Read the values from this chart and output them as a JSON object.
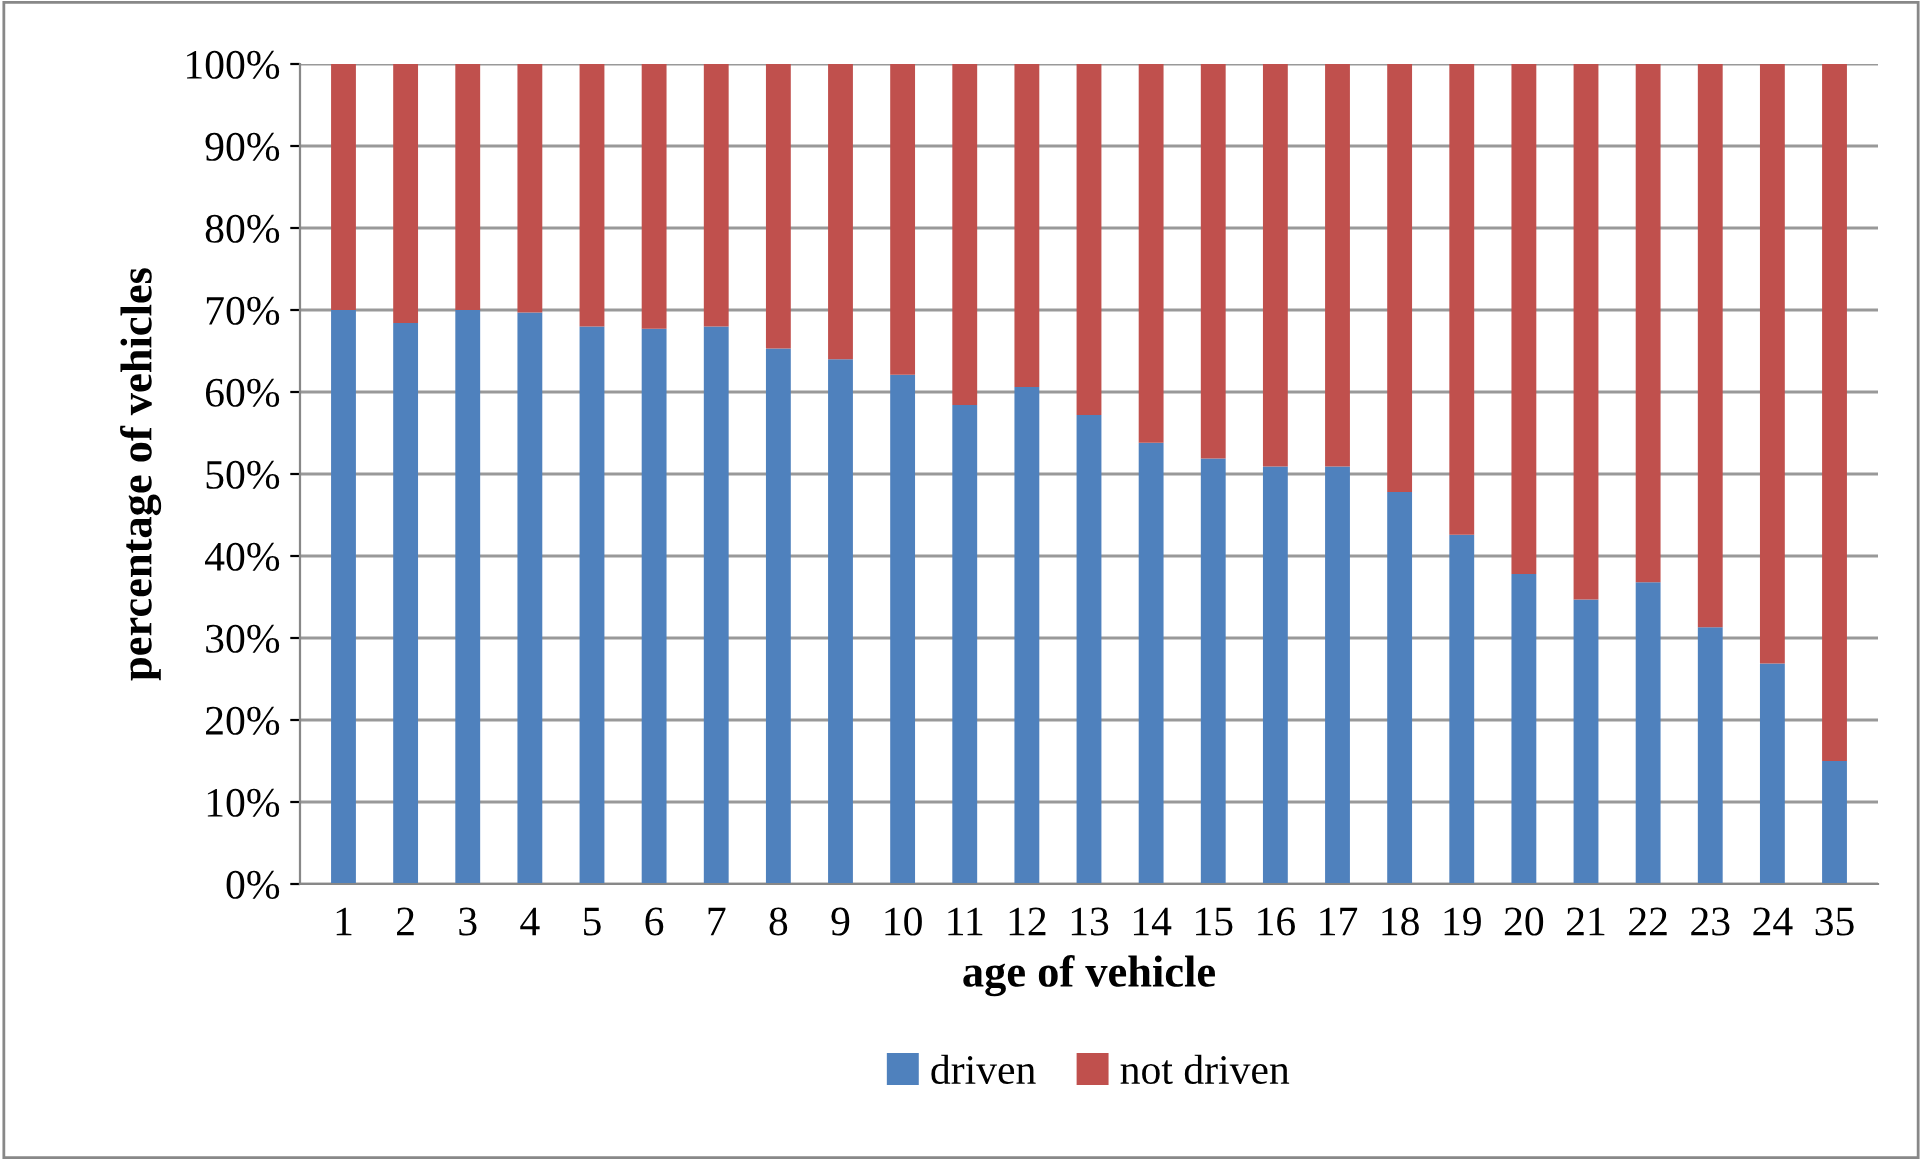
{
  "chart_data": {
    "type": "bar",
    "stacked": true,
    "xlabel": "age of vehicle",
    "ylabel": "percentage of vehicles",
    "categories": [
      "1",
      "2",
      "3",
      "4",
      "5",
      "6",
      "7",
      "8",
      "9",
      "10",
      "11",
      "12",
      "13",
      "14",
      "15",
      "16",
      "17",
      "18",
      "19",
      "20",
      "21",
      "22",
      "23",
      "24",
      "35"
    ],
    "series": [
      {
        "name": "driven",
        "color": "#4f81bd",
        "values": [
          70.0,
          68.4,
          70.0,
          69.7,
          68.0,
          67.7,
          68.0,
          65.3,
          64.0,
          62.1,
          58.4,
          60.6,
          57.2,
          53.8,
          51.9,
          50.9,
          50.9,
          47.8,
          42.6,
          37.8,
          34.7,
          36.8,
          31.3,
          26.9,
          15.0
        ]
      },
      {
        "name": "not driven",
        "color": "#c0504d",
        "values": [
          30.0,
          31.6,
          30.0,
          30.3,
          32.0,
          32.3,
          32.0,
          34.7,
          36.0,
          37.9,
          41.6,
          39.4,
          42.8,
          46.2,
          48.1,
          49.1,
          49.1,
          52.2,
          57.4,
          62.2,
          65.3,
          63.2,
          68.7,
          73.1,
          85.0
        ]
      }
    ],
    "ylim": [
      0,
      100
    ],
    "yticks": [
      {
        "value": 0,
        "label": "0%"
      },
      {
        "value": 10,
        "label": "10%"
      },
      {
        "value": 20,
        "label": "20%"
      },
      {
        "value": 30,
        "label": "30%"
      },
      {
        "value": 40,
        "label": "40%"
      },
      {
        "value": 50,
        "label": "50%"
      },
      {
        "value": 60,
        "label": "60%"
      },
      {
        "value": 70,
        "label": "70%"
      },
      {
        "value": 80,
        "label": "80%"
      },
      {
        "value": 90,
        "label": "90%"
      },
      {
        "value": 100,
        "label": "100%"
      }
    ],
    "grid": "y",
    "legend": "bottom"
  }
}
